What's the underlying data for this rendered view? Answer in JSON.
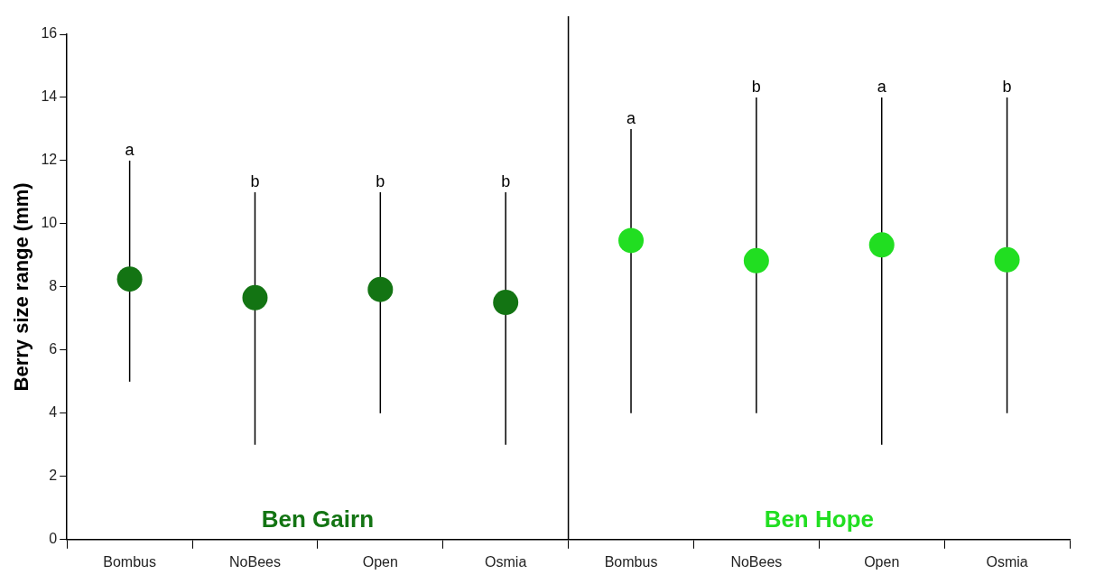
{
  "chart_data": {
    "type": "scatter",
    "ylabel": "Berry size range (mm)",
    "categories": [
      "Bombus",
      "NoBees",
      "Open",
      "Osmia",
      "Bombus",
      "NoBees",
      "Open",
      "Osmia"
    ],
    "series": [
      {
        "name": "Ben Gairn",
        "color": "#137413",
        "values": [
          8.25,
          7.66,
          7.92,
          7.51,
          null,
          null,
          null,
          null
        ],
        "errors": [
          [
            5,
            12
          ],
          [
            3,
            11
          ],
          [
            4,
            11
          ],
          [
            3,
            11
          ],
          null,
          null,
          null,
          null
        ]
      },
      {
        "name": "Ben Hope",
        "color": "#21de21",
        "values": [
          null,
          null,
          null,
          null,
          9.47,
          8.83,
          9.33,
          8.86
        ],
        "errors": [
          null,
          null,
          null,
          null,
          [
            4,
            13
          ],
          [
            4,
            14
          ],
          [
            3,
            14
          ],
          [
            4,
            14
          ]
        ]
      }
    ],
    "annotations": [
      "a",
      "b",
      "b",
      "b",
      "a",
      "b",
      "a",
      "b"
    ],
    "ylim": [
      0,
      16
    ],
    "yticks": [
      0,
      2,
      4,
      6,
      8,
      10,
      12,
      14,
      16
    ],
    "grid": false,
    "legend": false,
    "marker": "circle"
  }
}
